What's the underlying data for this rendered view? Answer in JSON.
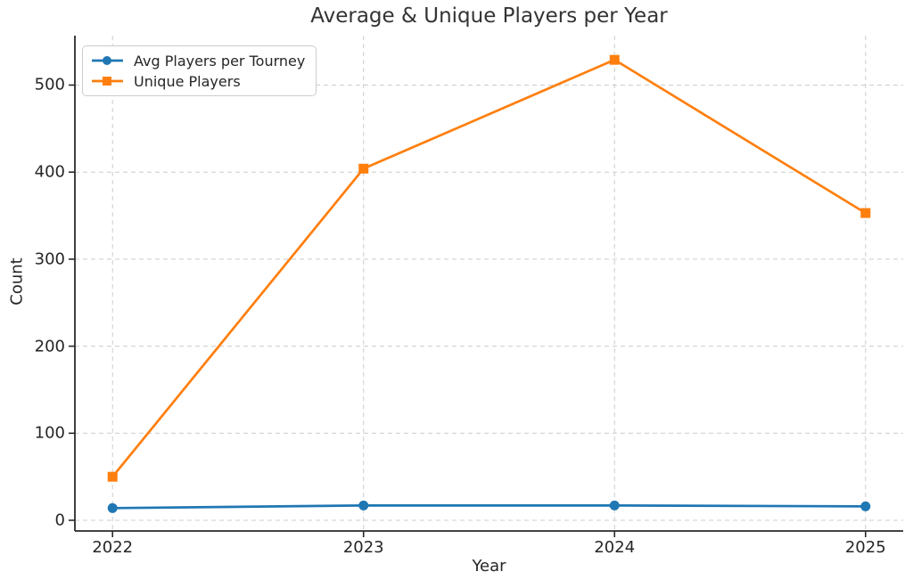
{
  "chart_data": {
    "type": "line",
    "title": "Average & Unique Players per Year",
    "xlabel": "Year",
    "ylabel": "Count",
    "categories": [
      2022,
      2023,
      2024,
      2025
    ],
    "series": [
      {
        "name": "Avg Players per Tourney",
        "values": [
          14,
          17,
          17,
          16
        ],
        "color": "#1f77b4",
        "marker": "circle"
      },
      {
        "name": "Unique Players",
        "values": [
          50,
          404,
          529,
          353
        ],
        "color": "#ff7f0e",
        "marker": "square"
      }
    ],
    "y_ticks": [
      0,
      100,
      200,
      300,
      400,
      500
    ],
    "xlim": [
      2021.85,
      2025.15
    ],
    "ylim": [
      -12.3,
      556.8
    ],
    "grid": true,
    "grid_style": "dashed",
    "legend_position": "upper left",
    "colors": {
      "grid": "#cccccc",
      "spine": "#2a2a2a",
      "text": "#262626",
      "background": "#ffffff"
    }
  }
}
